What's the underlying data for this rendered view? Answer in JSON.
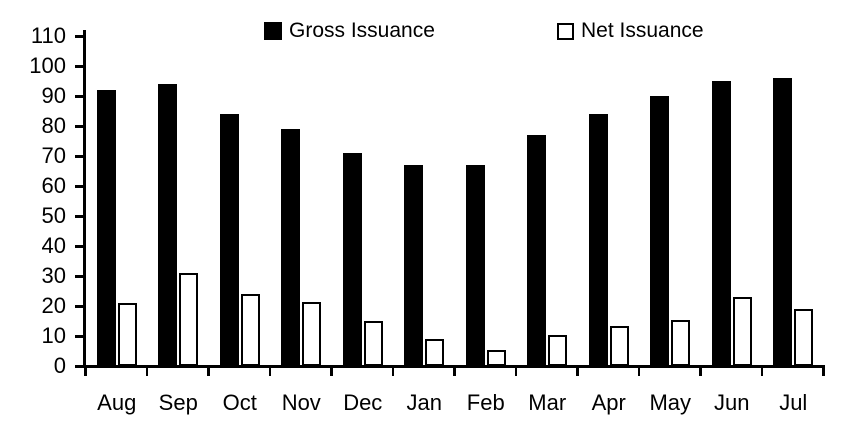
{
  "chart_data": {
    "type": "bar",
    "title": "",
    "xlabel": "",
    "ylabel": "",
    "categories": [
      "Aug",
      "Sep",
      "Oct",
      "Nov",
      "Dec",
      "Jan",
      "Feb",
      "Mar",
      "Apr",
      "May",
      "Jun",
      "Jul"
    ],
    "series": [
      {
        "name": "Gross Issuance",
        "style": "filled",
        "color": "#000000",
        "values": [
          92,
          94,
          84,
          79,
          71,
          67,
          67,
          77,
          84,
          90,
          95,
          96
        ]
      },
      {
        "name": "Net Issuance",
        "style": "outlined",
        "fill": "#ffffff",
        "border_color": "#000000",
        "values": [
          21,
          31,
          24,
          21.5,
          15,
          9,
          5.5,
          10.5,
          13.5,
          15.5,
          23,
          19
        ]
      }
    ],
    "ylim": [
      0,
      110
    ],
    "yticks": [
      0,
      10,
      20,
      30,
      40,
      50,
      60,
      70,
      80,
      90,
      100,
      110
    ],
    "grid": false,
    "legend_position": "top"
  },
  "colors": {
    "foreground": "#000000",
    "background": "#ffffff"
  }
}
